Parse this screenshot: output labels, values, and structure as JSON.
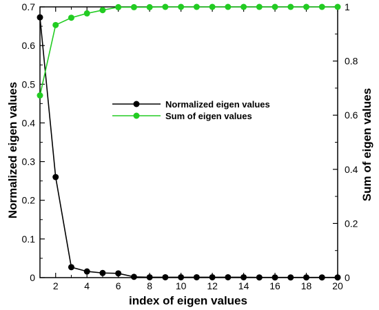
{
  "chart_data": {
    "type": "line",
    "xlabel": "index of eigen values",
    "ylabel_left": "Normalized eigen values",
    "ylabel_right": "Sum of eigen values",
    "xlim": [
      1,
      20
    ],
    "ylim_left": [
      0,
      0.7
    ],
    "ylim_right": [
      0,
      1
    ],
    "x_ticks": [
      2,
      4,
      6,
      8,
      10,
      12,
      14,
      16,
      18,
      20
    ],
    "y_left_ticks": [
      0,
      0.1,
      0.2,
      0.3,
      0.4,
      0.5,
      0.6,
      0.7
    ],
    "y_left_tick_labels": [
      "0",
      "0.1",
      "0.2",
      "0.3",
      "0.4",
      "0.5",
      "0.6",
      "0.7"
    ],
    "y_right_ticks": [
      0,
      0.2,
      0.4,
      0.6,
      0.8,
      1
    ],
    "y_right_tick_labels": [
      "0",
      "0.2",
      "0.4",
      "0.6",
      "0.8",
      "1"
    ],
    "grid": false,
    "legend_position": "center-right",
    "x": [
      1,
      2,
      3,
      4,
      5,
      6,
      7,
      8,
      9,
      10,
      11,
      12,
      13,
      14,
      15,
      16,
      17,
      18,
      19,
      20
    ],
    "series": [
      {
        "name": "Normalized eigen values",
        "axis": "left",
        "color": "#000000",
        "values": [
          0.673,
          0.26,
          0.027,
          0.016,
          0.012,
          0.011,
          0.002,
          0.001,
          0.001,
          0.001,
          0.001,
          0.001,
          0.001,
          0.001,
          0.0005,
          0.0005,
          0.0005,
          0.0005,
          0.0005,
          0.0005
        ]
      },
      {
        "name": "Sum of eigen values",
        "axis": "right",
        "color": "#22cc22",
        "values": [
          0.673,
          0.933,
          0.96,
          0.976,
          0.988,
          0.999,
          0.999,
          0.999,
          1,
          1,
          1,
          1,
          1,
          1,
          1,
          1,
          1,
          1,
          1,
          1
        ]
      }
    ]
  }
}
